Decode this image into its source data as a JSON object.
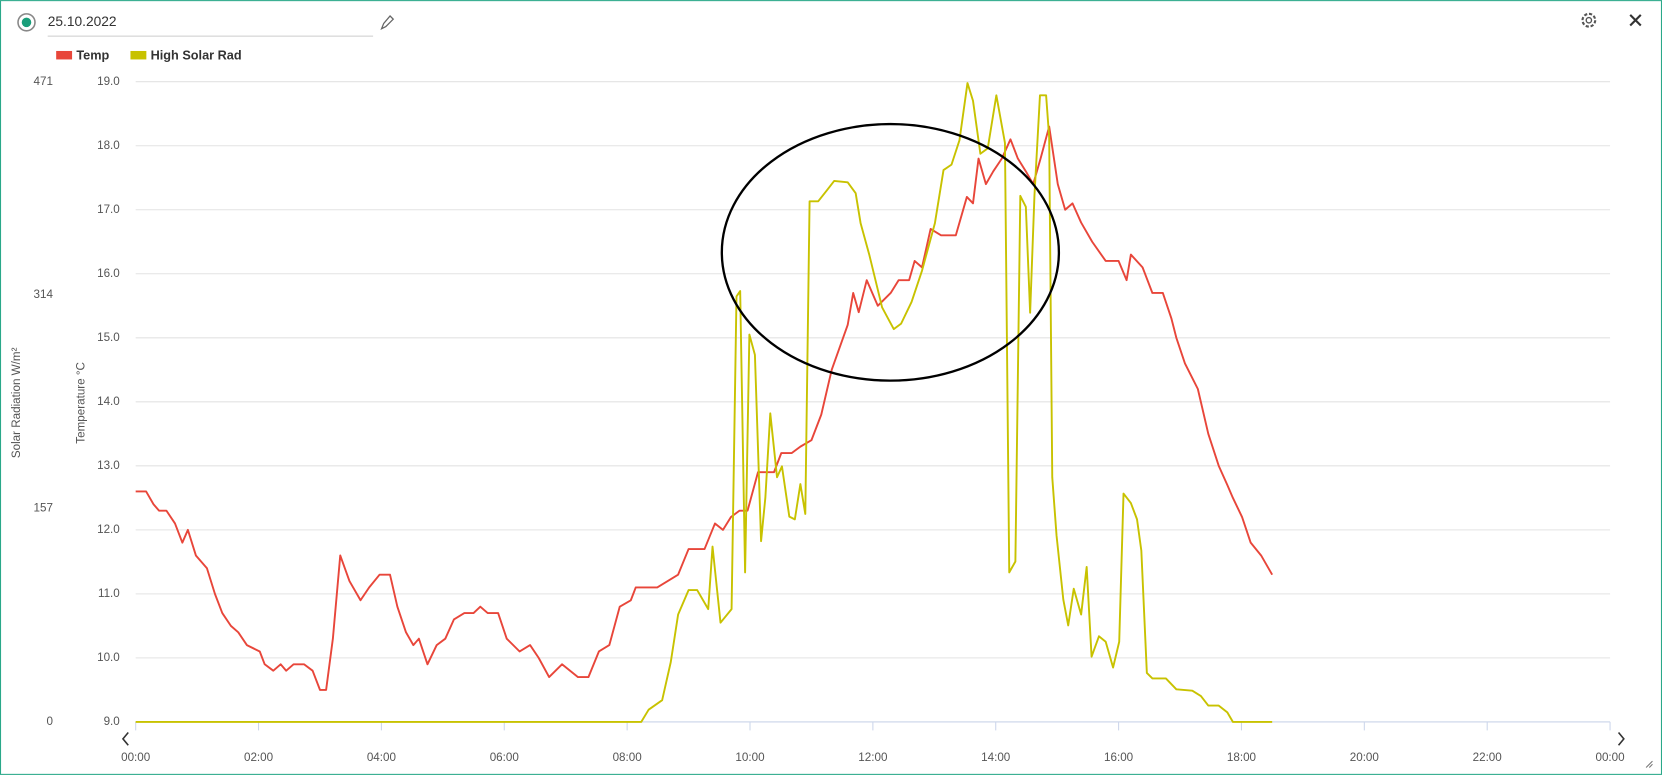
{
  "header": {
    "date": "25.10.2022"
  },
  "chart_data": {
    "type": "line",
    "ylabel": "Temperature °C",
    "y2label": "Solar Radiation W/m²",
    "xlim": [
      0,
      24
    ],
    "xticks": [
      {
        "value": 0,
        "label": "00:00"
      },
      {
        "value": 2,
        "label": "02:00"
      },
      {
        "value": 4,
        "label": "04:00"
      },
      {
        "value": 6,
        "label": "06:00"
      },
      {
        "value": 8,
        "label": "08:00"
      },
      {
        "value": 10,
        "label": "10:00"
      },
      {
        "value": 12,
        "label": "12:00"
      },
      {
        "value": 14,
        "label": "14:00"
      },
      {
        "value": 16,
        "label": "16:00"
      },
      {
        "value": 18,
        "label": "18:00"
      },
      {
        "value": 20,
        "label": "20:00"
      },
      {
        "value": 22,
        "label": "22:00"
      },
      {
        "value": 24,
        "label": "00:00"
      }
    ],
    "ylim": [
      9,
      19
    ],
    "yticks": [
      {
        "value": 9,
        "label": "9.0"
      },
      {
        "value": 10,
        "label": "10.0"
      },
      {
        "value": 11,
        "label": "11.0"
      },
      {
        "value": 12,
        "label": "12.0"
      },
      {
        "value": 13,
        "label": "13.0"
      },
      {
        "value": 14,
        "label": "14.0"
      },
      {
        "value": 15,
        "label": "15.0"
      },
      {
        "value": 16,
        "label": "16.0"
      },
      {
        "value": 17,
        "label": "17.0"
      },
      {
        "value": 18,
        "label": "18.0"
      },
      {
        "value": 19,
        "label": "19.0"
      }
    ],
    "y2lim": [
      0,
      471
    ],
    "y2ticks": [
      0,
      157,
      314,
      471
    ],
    "grid": true,
    "series": [
      {
        "name": "Temp",
        "color": "#e8463a",
        "x": [
          0,
          0.17,
          0.29,
          0.38,
          0.5,
          0.64,
          0.76,
          0.85,
          0.98,
          1.16,
          1.29,
          1.41,
          1.55,
          1.67,
          1.81,
          2.02,
          2.1,
          2.24,
          2.36,
          2.45,
          2.57,
          2.74,
          2.88,
          3.0,
          3.1,
          3.21,
          3.33,
          3.48,
          3.66,
          3.8,
          3.97,
          4.14,
          4.26,
          4.4,
          4.52,
          4.61,
          4.75,
          4.9,
          5.04,
          5.18,
          5.35,
          5.5,
          5.61,
          5.73,
          5.9,
          6.04,
          6.25,
          6.42,
          6.56,
          6.73,
          6.94,
          7.2,
          7.37,
          7.54,
          7.71,
          7.88,
          8.06,
          8.14,
          8.49,
          8.66,
          8.83,
          9.0,
          9.26,
          9.43,
          9.56,
          9.69,
          9.83,
          9.96,
          10.13,
          10.39,
          10.51,
          10.68,
          10.82,
          11.0,
          11.16,
          11.33,
          11.59,
          11.68,
          11.77,
          11.9,
          12.08,
          12.29,
          12.42,
          12.59,
          12.68,
          12.8,
          12.94,
          13.11,
          13.35,
          13.53,
          13.63,
          13.72,
          13.84,
          13.96,
          14.1,
          14.24,
          14.36,
          14.49,
          14.61,
          14.73,
          14.87,
          15.01,
          15.13,
          15.25,
          15.39,
          15.57,
          15.79,
          16.0,
          16.13,
          16.2,
          16.39,
          16.55,
          16.72,
          16.86,
          16.94,
          17.08,
          17.29,
          17.46,
          17.63,
          17.77,
          17.86,
          18.01,
          18.15,
          18.32,
          18.5
        ],
        "values": [
          12.6,
          12.6,
          12.4,
          12.3,
          12.3,
          12.1,
          11.8,
          12.0,
          11.6,
          11.4,
          11.0,
          10.7,
          10.5,
          10.4,
          10.2,
          10.1,
          9.9,
          9.8,
          9.9,
          9.8,
          9.9,
          9.9,
          9.8,
          9.5,
          9.5,
          10.3,
          11.6,
          11.2,
          10.9,
          11.1,
          11.3,
          11.3,
          10.8,
          10.4,
          10.2,
          10.3,
          9.9,
          10.2,
          10.3,
          10.6,
          10.7,
          10.7,
          10.8,
          10.7,
          10.7,
          10.3,
          10.1,
          10.2,
          10.0,
          9.7,
          9.9,
          9.7,
          9.7,
          10.1,
          10.2,
          10.8,
          10.9,
          11.1,
          11.1,
          11.2,
          11.3,
          11.7,
          11.7,
          12.1,
          12.0,
          12.2,
          12.3,
          12.3,
          12.9,
          12.9,
          13.2,
          13.2,
          13.3,
          13.4,
          13.8,
          14.5,
          15.2,
          15.7,
          15.4,
          15.9,
          15.5,
          15.7,
          15.9,
          15.9,
          16.2,
          16.1,
          16.7,
          16.6,
          16.6,
          17.2,
          17.1,
          17.8,
          17.4,
          17.6,
          17.8,
          18.1,
          17.8,
          17.6,
          17.4,
          17.8,
          18.3,
          17.4,
          17.0,
          17.1,
          16.8,
          16.5,
          16.2,
          16.2,
          15.9,
          16.3,
          16.1,
          15.7,
          15.7,
          15.3,
          15.0,
          14.6,
          14.2,
          13.5,
          13.0,
          12.7,
          12.5,
          12.2,
          11.8,
          11.6,
          11.3
        ]
      },
      {
        "name": "High Solar Rad",
        "color": "#c8c200",
        "axis": "y2",
        "x": [
          0,
          8.23,
          8.35,
          8.57,
          8.71,
          8.83,
          9.0,
          9.14,
          9.32,
          9.39,
          9.52,
          9.7,
          9.78,
          9.84,
          9.92,
          9.99,
          10.08,
          10.18,
          10.25,
          10.33,
          10.44,
          10.52,
          10.64,
          10.73,
          10.82,
          10.9,
          10.97,
          11.11,
          11.25,
          11.37,
          11.59,
          11.72,
          11.8,
          11.94,
          12.15,
          12.34,
          12.46,
          12.63,
          12.8,
          13.01,
          13.15,
          13.28,
          13.41,
          13.54,
          13.63,
          13.75,
          13.87,
          14.01,
          14.15,
          14.22,
          14.32,
          14.4,
          14.49,
          14.56,
          14.63,
          14.72,
          14.82,
          14.87,
          14.92,
          14.99,
          15.1,
          15.18,
          15.27,
          15.39,
          15.48,
          15.56,
          15.68,
          15.79,
          15.91,
          16.01,
          16.08,
          16.2,
          16.3,
          16.37,
          16.46,
          16.55,
          16.77,
          16.94,
          17.2,
          17.34,
          17.46,
          17.63,
          17.77,
          17.86,
          18.5
        ],
        "values": [
          0,
          0,
          9,
          16,
          44,
          79,
          97,
          97,
          83,
          129,
          73,
          83,
          313,
          317,
          110,
          285,
          270,
          133,
          165,
          227,
          180,
          188,
          151,
          149,
          175,
          153,
          383,
          383,
          391,
          398,
          397,
          389,
          367,
          344,
          305,
          289,
          293,
          309,
          332,
          367,
          406,
          410,
          428,
          470,
          457,
          418,
          422,
          461,
          426,
          110,
          118,
          387,
          379,
          301,
          387,
          461,
          461,
          430,
          180,
          137,
          90,
          71,
          98,
          79,
          114,
          48,
          63,
          59,
          40,
          59,
          168,
          161,
          149,
          126,
          36,
          32,
          32,
          24,
          23,
          19,
          12,
          12,
          7,
          0,
          0
        ]
      }
    ]
  }
}
